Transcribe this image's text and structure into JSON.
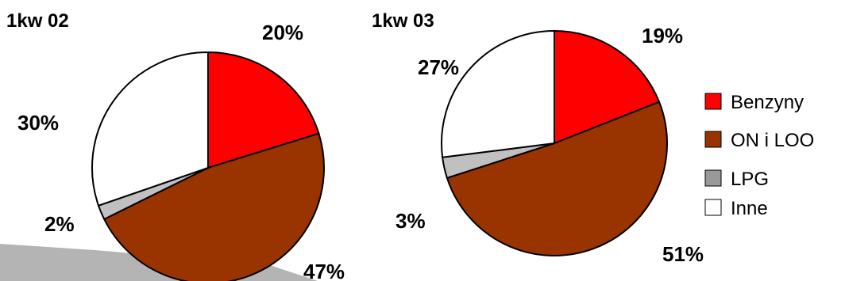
{
  "chart_data": [
    {
      "type": "pie",
      "title": "1kw 02",
      "categories": [
        "Benzyny",
        "ON i LOO",
        "LPG",
        "Inne"
      ],
      "values": [
        20,
        47,
        2,
        30
      ],
      "labels": [
        "20%",
        "47%",
        "2%",
        "30%"
      ],
      "start_angle_deg": 0,
      "direction": "clockwise"
    },
    {
      "type": "pie",
      "title": "1kw 03",
      "categories": [
        "Benzyny",
        "ON i LOO",
        "LPG",
        "Inne"
      ],
      "values": [
        19,
        51,
        3,
        27
      ],
      "labels": [
        "19%",
        "51%",
        "3%",
        "27%"
      ],
      "start_angle_deg": 0,
      "direction": "clockwise"
    }
  ],
  "legend": {
    "placement": "right",
    "items": [
      {
        "label": "Benzyny",
        "color": "#ff0000"
      },
      {
        "label": "ON i LOO",
        "color": "#993300"
      },
      {
        "label": "LPG",
        "color": "#999999"
      },
      {
        "label": "Inne",
        "color": "#ffffff"
      }
    ]
  },
  "colors": {
    "Benzyny": "#ff0000",
    "ON i LOO": "#993300",
    "LPG": "#c0c0c0",
    "Inne": "#ffffff",
    "decor_band": "#b4b4b4"
  }
}
